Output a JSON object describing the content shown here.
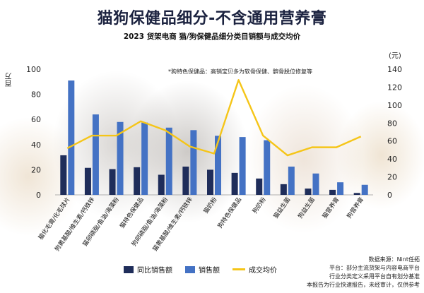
{
  "header": {
    "title": "猫狗保健品细分-不含通用营养膏",
    "subtitle": "2023 货架电商 猫/狗保健品细分类目销额与成交均价"
  },
  "units": {
    "left": "百万",
    "right": "(元)"
  },
  "note": "*狗特色保健品：高销宝贝多为软骨保健、髌骨脱位修复等",
  "footer": {
    "lines": [
      "数据来源：Nint任拓",
      "平台：部分主流货架与内容电商平台",
      "行业分类定义采用平台自有划分基准",
      "本报告为行业快速报告，未经审计，仅供参考"
    ]
  },
  "colors": {
    "yoy": "#1f2d5a",
    "sales": "#4472c4",
    "price": "#f5c518"
  },
  "chart_data": {
    "type": "bar",
    "categories": [
      "猫化毛膏/化毛球片",
      "狗黄基酸/维生素/钙铁锌",
      "猫卵磷脂/鱼油/海藻粉",
      "猫特色保健品",
      "狗卵磷脂/鱼油/海藻粉",
      "猫黄基酸/维生素/钙铁锌",
      "猫奶粉",
      "狗特色保健品",
      "狗奶粉",
      "猫益生菌",
      "狗益生菌",
      "猫营养膏",
      "狗营养膏"
    ],
    "series": [
      {
        "name": "同比销售额",
        "axis": "left",
        "values": [
          31.5,
          21.5,
          20.5,
          22,
          16,
          22.5,
          20,
          17.5,
          13,
          8.5,
          5,
          4,
          1.5
        ]
      },
      {
        "name": "销售额",
        "axis": "left",
        "values": [
          91,
          64,
          58,
          57.5,
          53.5,
          51.5,
          47,
          46,
          43.5,
          22.5,
          17,
          10,
          8
        ]
      },
      {
        "name": "成交均价",
        "axis": "right",
        "type": "line",
        "values": [
          52,
          66,
          66,
          82,
          72,
          54,
          46,
          128,
          66,
          44,
          53,
          53,
          65
        ]
      }
    ],
    "ylim_left": [
      0,
      100
    ],
    "yticks_left": [
      0,
      20,
      40,
      60,
      80,
      100
    ],
    "ylim_right": [
      0,
      140
    ],
    "yticks_right": [
      0,
      20,
      40,
      60,
      80,
      100,
      120,
      140
    ],
    "legend": "bottom",
    "grid": false
  }
}
